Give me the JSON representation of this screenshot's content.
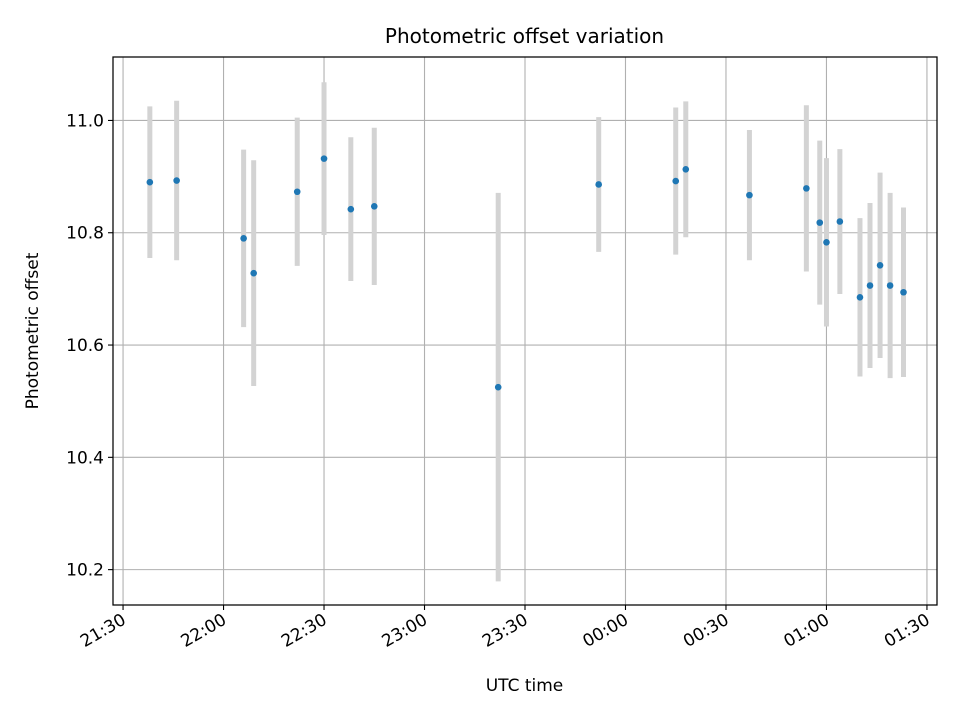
{
  "chart_data": {
    "type": "scatter",
    "title": "Photometric offset variation",
    "xlabel": "UTC time",
    "ylabel": "Photometric offset",
    "xlim": [
      "21:27",
      "01:33"
    ],
    "ylim": [
      10.137,
      11.113
    ],
    "x_ticks": [
      "21:30",
      "22:00",
      "22:30",
      "23:00",
      "23:30",
      "00:00",
      "00:30",
      "01:00",
      "01:30"
    ],
    "y_ticks": [
      "10.2",
      "10.4",
      "10.6",
      "10.8",
      "11.0"
    ],
    "grid": true,
    "colors": {
      "marker": "#1f77b4",
      "errorbar": "#d3d3d3",
      "grid": "#b0b0b0"
    },
    "points": [
      {
        "time": "21:38",
        "y": 10.89,
        "err": 0.135
      },
      {
        "time": "21:46",
        "y": 10.893,
        "err": 0.142
      },
      {
        "time": "22:06",
        "y": 10.79,
        "err": 0.158
      },
      {
        "time": "22:09",
        "y": 10.728,
        "err": 0.201
      },
      {
        "time": "22:22",
        "y": 10.873,
        "err": 0.132
      },
      {
        "time": "22:30",
        "y": 10.932,
        "err": 0.136
      },
      {
        "time": "22:38",
        "y": 10.842,
        "err": 0.128
      },
      {
        "time": "22:45",
        "y": 10.847,
        "err": 0.14
      },
      {
        "time": "23:22",
        "y": 10.525,
        "err": 0.346
      },
      {
        "time": "23:52",
        "y": 10.886,
        "err": 0.12
      },
      {
        "time": "00:15",
        "y": 10.892,
        "err": 0.131
      },
      {
        "time": "00:18",
        "y": 10.913,
        "err": 0.121
      },
      {
        "time": "00:37",
        "y": 10.867,
        "err": 0.116
      },
      {
        "time": "00:54",
        "y": 10.879,
        "err": 0.148
      },
      {
        "time": "00:58",
        "y": 10.818,
        "err": 0.146
      },
      {
        "time": "01:00",
        "y": 10.783,
        "err": 0.15
      },
      {
        "time": "01:04",
        "y": 10.82,
        "err": 0.129
      },
      {
        "time": "01:10",
        "y": 10.685,
        "err": 0.141
      },
      {
        "time": "01:13",
        "y": 10.706,
        "err": 0.147
      },
      {
        "time": "01:16",
        "y": 10.742,
        "err": 0.165
      },
      {
        "time": "01:19",
        "y": 10.706,
        "err": 0.165
      },
      {
        "time": "01:23",
        "y": 10.694,
        "err": 0.151
      }
    ]
  }
}
